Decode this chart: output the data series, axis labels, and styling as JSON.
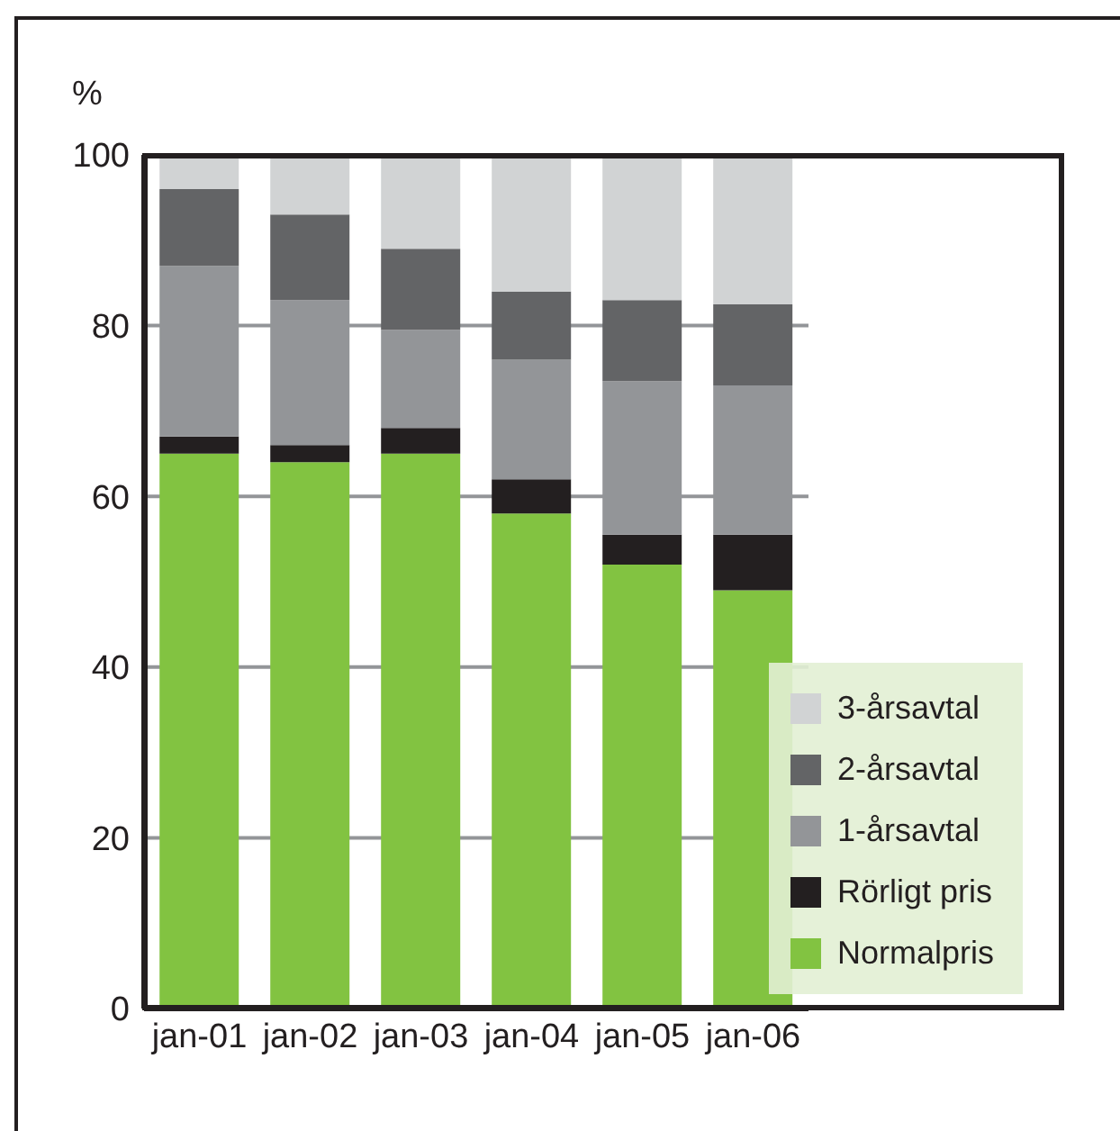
{
  "chart_data": {
    "type": "bar",
    "stacked": true,
    "ylabel": "%",
    "categories": [
      "jan-01",
      "jan-02",
      "jan-03",
      "jan-04",
      "jan-05",
      "jan-06"
    ],
    "series": [
      {
        "name": "Normalpris",
        "color": "#82c341",
        "values": [
          65,
          64,
          65,
          58,
          52,
          49
        ]
      },
      {
        "name": "Rörligt pris",
        "color": "#231f20",
        "values": [
          2,
          2,
          3,
          4,
          3.5,
          6.5
        ]
      },
      {
        "name": "1-årsavtal",
        "color": "#939598",
        "values": [
          20,
          17,
          11.5,
          14,
          18,
          17.5
        ]
      },
      {
        "name": "2-årsavtal",
        "color": "#636466",
        "values": [
          9,
          10,
          9.5,
          8,
          9.5,
          9.5
        ]
      },
      {
        "name": "3-årsavtal",
        "color": "#d1d3d4",
        "values": [
          4,
          7,
          11,
          16,
          17,
          17.5
        ]
      }
    ],
    "ylim": [
      0,
      100
    ],
    "yticks": [
      0,
      20,
      40,
      60,
      80,
      100
    ],
    "grid": "y",
    "legend": "bottom right"
  }
}
